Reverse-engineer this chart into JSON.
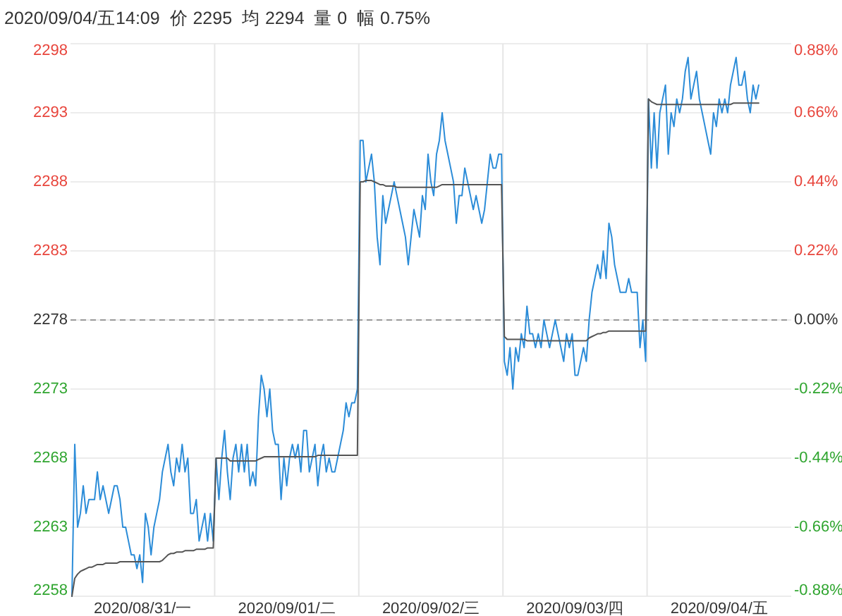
{
  "chart_data": {
    "type": "line",
    "title": "2020/09/04/五14:09  价 2295  均 2294  量 0  幅 0.75%",
    "categories": [
      null,
      null,
      null,
      null,
      null,
      null,
      null,
      null,
      null,
      null,
      null,
      null,
      null,
      null,
      null,
      null,
      null,
      null,
      null,
      null,
      null,
      null,
      null,
      null,
      null,
      "2020/08/31/一",
      null,
      null,
      null,
      null,
      null,
      null,
      null,
      null,
      null,
      null,
      null,
      null,
      null,
      null,
      null,
      null,
      null,
      null,
      null,
      null,
      null,
      null,
      null,
      null,
      null,
      null,
      null,
      null,
      null,
      null,
      null,
      null,
      null,
      null,
      null,
      null,
      null,
      null,
      null,
      null,
      null,
      null,
      null,
      null,
      null,
      null,
      null,
      null,
      null,
      null,
      "2020/09/01/二",
      null,
      null,
      null,
      null,
      null,
      null,
      null,
      null,
      null,
      null,
      null,
      null,
      null,
      null,
      null,
      null,
      null,
      null,
      null,
      null,
      null,
      null,
      null,
      null,
      null,
      null,
      null,
      null,
      null,
      null,
      null,
      null,
      null,
      null,
      null,
      null,
      null,
      null,
      null,
      null,
      null,
      null,
      null,
      null,
      null,
      null,
      null,
      null,
      null,
      null,
      "2020/09/02/三",
      null,
      null,
      null,
      null,
      null,
      null,
      null,
      null,
      null,
      null,
      null,
      null,
      null,
      null,
      null,
      null,
      null,
      null,
      null,
      null,
      null,
      null,
      null,
      null,
      null,
      null,
      null,
      null,
      null,
      null,
      null,
      null,
      null,
      null,
      null,
      null,
      null,
      null,
      null,
      null,
      null,
      null,
      null,
      null,
      null,
      null,
      null,
      null,
      null,
      null,
      "2020/09/03/四",
      null,
      null,
      null,
      null,
      null,
      null,
      null,
      null,
      null,
      null,
      null,
      null,
      null,
      null,
      null,
      null,
      null,
      null,
      null,
      null,
      null,
      null,
      null,
      null,
      null,
      null,
      null,
      null,
      null,
      null,
      null,
      null,
      null,
      null,
      null,
      null,
      null,
      null,
      null,
      null,
      null,
      null,
      null,
      null,
      null,
      null,
      null,
      null,
      null,
      null,
      "2020/09/04/五",
      null,
      null,
      null,
      null,
      null,
      null,
      null,
      null,
      null,
      null,
      null,
      null,
      null,
      null,
      null,
      null,
      null,
      null,
      null,
      null,
      null,
      null,
      null,
      null,
      null
    ],
    "ylim": [
      2258,
      2298
    ],
    "yticks": [
      2258,
      2263,
      2268,
      2273,
      2278,
      2283,
      2288,
      2293,
      2298
    ],
    "y2lim": [
      -0.878,
      0.878
    ],
    "y2ticks": [
      {
        "value": -0.878,
        "label": "-0.88%"
      },
      {
        "value": -0.658,
        "label": "-0.66%"
      },
      {
        "value": -0.439,
        "label": "-0.44%"
      },
      {
        "value": -0.219,
        "label": "-0.22%"
      },
      {
        "value": 0,
        "label": "0.00%"
      },
      {
        "value": 0.219,
        "label": "0.22%"
      },
      {
        "value": 0.439,
        "label": "0.44%"
      },
      {
        "value": 0.658,
        "label": "0.66%"
      },
      {
        "value": 0.878,
        "label": "0.88%"
      }
    ],
    "grid": true,
    "ref_lines": [
      {
        "axis": "y",
        "value": 2278,
        "color": "#9a9a9a",
        "line_style": "dashed"
      }
    ],
    "series": [
      {
        "color": "#2b8cd8",
        "values": [
          2258,
          2269,
          2263,
          2264,
          2266,
          2264,
          2265,
          2265,
          2265,
          2267,
          2265,
          2266,
          2265,
          2264,
          2265,
          2266,
          2266,
          2265,
          2263,
          2263,
          2262,
          2261,
          2261,
          2260,
          2261,
          2259,
          2264,
          2263,
          2261,
          2263,
          2264,
          2265,
          2267,
          2268,
          2269,
          2267,
          2266,
          2268,
          2267,
          2269,
          2267,
          2268,
          2264,
          2264,
          2265,
          2262,
          2263,
          2264,
          2262,
          2264,
          2262,
          2268,
          2265,
          2268,
          2270,
          2267,
          2265,
          2268,
          2269,
          2267,
          2269,
          2267,
          2269,
          2266,
          2267,
          2266,
          2271,
          2274,
          2273,
          2271,
          2273,
          2270,
          2269,
          2269,
          2265,
          2268,
          2266,
          2268,
          2269,
          2268,
          2269,
          2267,
          2270,
          2270,
          2267,
          2268,
          2269,
          2266,
          2268,
          2269,
          2267,
          2268,
          2267,
          2267,
          2268,
          2269,
          2270,
          2272,
          2271,
          2272,
          2272,
          2273,
          2291,
          2291,
          2288,
          2289,
          2290,
          2288,
          2284,
          2282,
          2287,
          2285,
          2286,
          2287,
          2288,
          2287,
          2286,
          2285,
          2284,
          2282,
          2284,
          2286,
          2285,
          2284,
          2287,
          2286,
          2290,
          2288,
          2287,
          2290,
          2291,
          2293,
          2291,
          2290,
          2289,
          2288,
          2285,
          2287,
          2287,
          2289,
          2288,
          2287,
          2286,
          2287,
          2286,
          2285,
          2286,
          2288,
          2290,
          2289,
          2289,
          2290,
          2290,
          2275,
          2274,
          2276,
          2273,
          2276,
          2275,
          2277,
          2276,
          2279,
          2277,
          2277,
          2276,
          2277,
          2276,
          2278,
          2277,
          2276,
          2277,
          2278,
          2277,
          2276,
          2275,
          2277,
          2276,
          2277,
          2274,
          2274,
          2275,
          2276,
          2275,
          2278,
          2280,
          2281,
          2282,
          2281,
          2283,
          2281,
          2285,
          2284,
          2282,
          2281,
          2280,
          2280,
          2280,
          2281,
          2280,
          2280,
          2280,
          2276,
          2278,
          2275,
          2294,
          2289,
          2293,
          2289,
          2293,
          2294,
          2295,
          2290,
          2293,
          2292,
          2294,
          2293,
          2294,
          2296,
          2297,
          2294,
          2295,
          2296,
          2294,
          2293,
          2292,
          2291,
          2290,
          2293,
          2292,
          2294,
          2293,
          2294,
          2293,
          2295,
          2296,
          2297,
          2295,
          2295,
          2296,
          2294,
          2293,
          2295,
          2294,
          2295,
          null,
          null,
          null,
          null,
          null,
          null,
          null,
          null,
          null,
          null,
          null
        ]
      },
      {
        "color": "#555555",
        "values": [
          2258,
          2259.3,
          2259.6,
          2259.8,
          2259.9,
          2260,
          2260.1,
          2260.1,
          2260.2,
          2260.3,
          2260.3,
          2260.3,
          2260.4,
          2260.4,
          2260.4,
          2260.4,
          2260.4,
          2260.5,
          2260.5,
          2260.5,
          2260.5,
          2260.5,
          2260.5,
          2260.5,
          2260.5,
          2260.5,
          2260.5,
          2260.5,
          2260.5,
          2260.5,
          2260.5,
          2260.5,
          2260.6,
          2260.8,
          2261,
          2261.1,
          2261.1,
          2261.2,
          2261.2,
          2261.2,
          2261.3,
          2261.3,
          2261.3,
          2261.3,
          2261.4,
          2261.4,
          2261.4,
          2261.4,
          2261.5,
          2261.5,
          2261.5,
          2268,
          2268,
          2268,
          2268,
          2268,
          2267.8,
          2267.8,
          2267.8,
          2267.8,
          2267.8,
          2267.8,
          2267.8,
          2267.8,
          2267.8,
          2267.8,
          2267.9,
          2268,
          2268.1,
          2268.1,
          2268.1,
          2268.1,
          2268.1,
          2268.1,
          2268.1,
          2268.1,
          2268.1,
          2268.1,
          2268.1,
          2268.1,
          2268.1,
          2268.1,
          2268.1,
          2268.1,
          2268.1,
          2268.1,
          2268.1,
          2268.2,
          2268.2,
          2268.2,
          2268.2,
          2268.2,
          2268.2,
          2268.2,
          2268.2,
          2268.2,
          2268.2,
          2268.2,
          2268.2,
          2268.2,
          2268.2,
          2268.2,
          2288,
          2288,
          2288.1,
          2288.1,
          2288.1,
          2288,
          2287.9,
          2287.8,
          2287.8,
          2287.7,
          2287.7,
          2287.7,
          2287.7,
          2287.6,
          2287.6,
          2287.6,
          2287.6,
          2287.6,
          2287.6,
          2287.6,
          2287.6,
          2287.6,
          2287.6,
          2287.6,
          2287.6,
          2287.6,
          2287.6,
          2287.6,
          2287.7,
          2287.8,
          2287.8,
          2287.8,
          2287.8,
          2287.8,
          2287.8,
          2287.8,
          2287.8,
          2287.8,
          2287.8,
          2287.8,
          2287.8,
          2287.8,
          2287.8,
          2287.8,
          2287.8,
          2287.8,
          2287.8,
          2287.8,
          2287.8,
          2287.8,
          2287.8,
          2276.8,
          2276.6,
          2276.6,
          2276.6,
          2276.6,
          2276.6,
          2276.6,
          2276.6,
          2276.5,
          2276.5,
          2276.5,
          2276.5,
          2276.5,
          2276.5,
          2276.5,
          2276.5,
          2276.5,
          2276.5,
          2276.5,
          2276.5,
          2276.5,
          2276.5,
          2276.5,
          2276.5,
          2276.5,
          2276.5,
          2276.5,
          2276.5,
          2276.5,
          2276.5,
          2276.7,
          2276.8,
          2276.9,
          2277,
          2277,
          2277.1,
          2277.1,
          2277.2,
          2277.2,
          2277.2,
          2277.2,
          2277.2,
          2277.2,
          2277.2,
          2277.2,
          2277.2,
          2277.2,
          2277.2,
          2277.2,
          2277.2,
          2277.2,
          2294,
          2293.8,
          2293.7,
          2293.6,
          2293.6,
          2293.6,
          2293.6,
          2293.6,
          2293.6,
          2293.6,
          2293.6,
          2293.6,
          2293.6,
          2293.6,
          2293.6,
          2293.6,
          2293.6,
          2293.6,
          2293.6,
          2293.6,
          2293.6,
          2293.6,
          2293.6,
          2293.6,
          2293.6,
          2293.6,
          2293.6,
          2293.6,
          2293.6,
          2293.6,
          2293.7,
          2293.7,
          2293.7,
          2293.7,
          2293.7,
          2293.7,
          2293.7,
          2293.7,
          2293.7,
          2293.7,
          null,
          null,
          null,
          null,
          null,
          null,
          null,
          null,
          null,
          null,
          null
        ]
      }
    ]
  }
}
